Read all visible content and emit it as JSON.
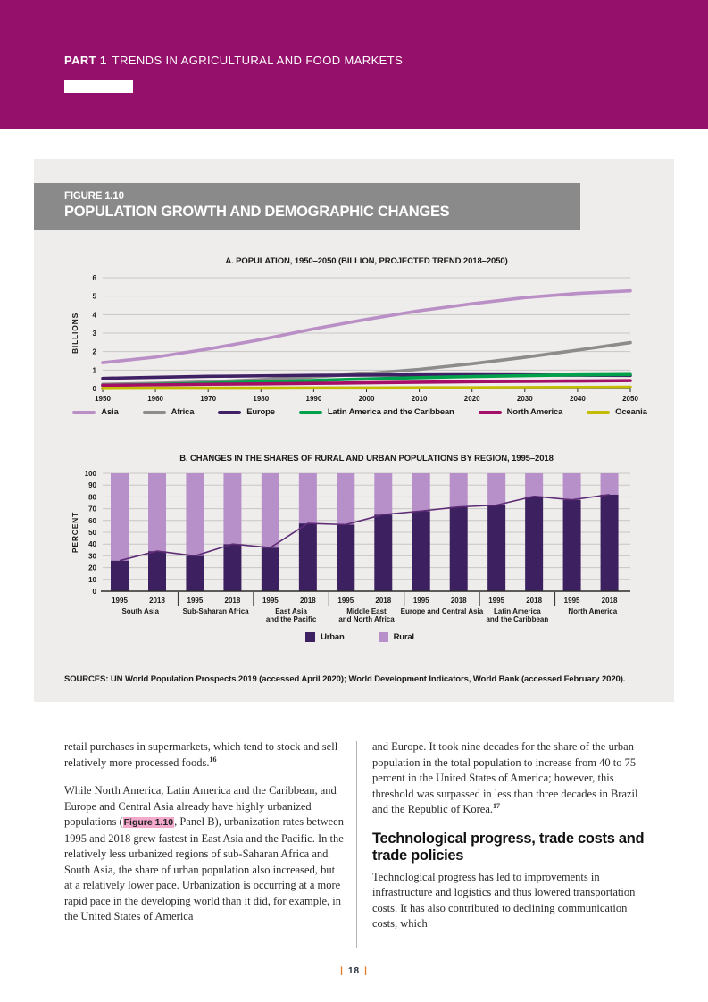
{
  "page": {
    "part_label": "PART 1",
    "part_title": "TRENDS IN AGRICULTURAL AND FOOD MARKETS",
    "page_number": "18",
    "pipe": "|"
  },
  "figure": {
    "id": "FIGURE 1.10",
    "title": "POPULATION GROWTH AND DEMOGRAPHIC CHANGES",
    "sources": "SOURCES: UN World Population Prospects 2019 (accessed April 2020); World Development Indicators, World Bank (accessed February 2020)."
  },
  "colors": {
    "header_band": "#95106B",
    "figure_header_bar": "#8A8A8A",
    "figure_panel_bg": "#EFEDEB",
    "highlight_pink": "#F2A9CC",
    "footer_orange": "#E87722"
  },
  "chart_data": [
    {
      "type": "line",
      "panel": "A",
      "title": "A. POPULATION, 1950–2050 (BILLION, PROJECTED TREND 2018–2050)",
      "ylabel": "BILLIONS",
      "ylim": [
        0,
        6
      ],
      "yticks": [
        0,
        1,
        2,
        3,
        4,
        5,
        6
      ],
      "x": [
        1950,
        1960,
        1970,
        1980,
        1990,
        2000,
        2010,
        2020,
        2030,
        2040,
        2050
      ],
      "grid": true,
      "legend_position": "bottom",
      "series": [
        {
          "name": "Asia",
          "color": "#B98FC6",
          "values": [
            1.4,
            1.7,
            2.14,
            2.65,
            3.23,
            3.74,
            4.21,
            4.59,
            4.92,
            5.15,
            5.29
          ]
        },
        {
          "name": "Africa",
          "color": "#8C8C8C",
          "values": [
            0.23,
            0.28,
            0.36,
            0.48,
            0.63,
            0.81,
            1.04,
            1.34,
            1.69,
            2.08,
            2.49
          ]
        },
        {
          "name": "Europe",
          "color": "#3F2064",
          "values": [
            0.55,
            0.61,
            0.66,
            0.69,
            0.72,
            0.73,
            0.74,
            0.75,
            0.74,
            0.72,
            0.71
          ]
        },
        {
          "name": "Latin America and the Caribbean",
          "color": "#00A14B",
          "values": [
            0.17,
            0.22,
            0.29,
            0.36,
            0.44,
            0.52,
            0.59,
            0.65,
            0.7,
            0.74,
            0.76
          ]
        },
        {
          "name": "North America",
          "color": "#A50E67",
          "values": [
            0.17,
            0.2,
            0.23,
            0.25,
            0.28,
            0.31,
            0.34,
            0.37,
            0.39,
            0.41,
            0.43
          ]
        },
        {
          "name": "Oceania",
          "color": "#C4BC00",
          "values": [
            0.01,
            0.02,
            0.02,
            0.02,
            0.03,
            0.03,
            0.04,
            0.04,
            0.05,
            0.06,
            0.07
          ]
        }
      ]
    },
    {
      "type": "bar",
      "subtype": "stacked",
      "panel": "B",
      "title": "B. CHANGES IN THE SHARES OF RURAL AND URBAN POPULATIONS BY REGION, 1995–2018",
      "ylabel": "PERCENT",
      "ylim": [
        0,
        100
      ],
      "yticks": [
        0,
        10,
        20,
        30,
        40,
        50,
        60,
        70,
        80,
        90,
        100
      ],
      "year_labels": [
        "1995",
        "2018"
      ],
      "categories": [
        "South Asia",
        "Sub-Saharan Africa",
        "East Asia and the Pacific",
        "Middle East and North Africa",
        "Europe and Central Asia",
        "Latin America and the Caribbean",
        "North America"
      ],
      "category_label_lines": [
        [
          "South Asia"
        ],
        [
          "Sub-Saharan Africa"
        ],
        [
          "East Asia",
          "and the Pacific"
        ],
        [
          "Middle East",
          "and North Africa"
        ],
        [
          "Europe and Central Asia"
        ],
        [
          "Latin America",
          "and the Caribbean"
        ],
        [
          "North America"
        ]
      ],
      "grid": true,
      "legend_position": "bottom",
      "trend_line_color": "#5E2C77",
      "series": [
        {
          "name": "Urban",
          "color": "#3D205F",
          "values_1995": [
            26,
            30,
            37,
            56.5,
            68,
            73,
            77.5
          ],
          "values_2018": [
            34,
            40,
            57.5,
            65,
            71.5,
            80.5,
            82
          ]
        },
        {
          "name": "Rural",
          "color": "#B78FC9",
          "values_1995": [
            74,
            70,
            63,
            43.5,
            32,
            27,
            22.5
          ],
          "values_2018": [
            66,
            60,
            42.5,
            35,
            28.5,
            19.5,
            18
          ]
        }
      ]
    }
  ],
  "body": {
    "left": {
      "para1_text": "retail purchases in supermarkets, which tend to stock and sell relatively more processed foods.",
      "para1_sup": "16",
      "para2_pre": "While North America, Latin America and the Caribbean, and Europe and Central Asia already have highly urbanized populations (",
      "para2_figref": "Figure 1.10",
      "para2_post": ", Panel B), urbanization rates between 1995 and 2018 grew fastest in East Asia and the Pacific. In the relatively less urbanized regions of sub-Saharan Africa and South Asia, the share of urban population also increased, but at a relatively lower pace. Urbanization is occurring at a more rapid pace in the developing world than it did, for example, in the United States of America"
    },
    "right": {
      "para1_text": "and Europe. It took nine decades for the share of the urban population in the total population to increase from 40 to 75 percent in the United States of America; however, this threshold was surpassed in less than three decades in Brazil and the Republic of Korea.",
      "para1_sup": "17",
      "heading": "Technological progress, trade costs and trade policies",
      "para2_text": "Technological progress has led to improvements in infrastructure and logistics and thus lowered transportation costs. It has also contributed to declining communication costs, which"
    }
  }
}
